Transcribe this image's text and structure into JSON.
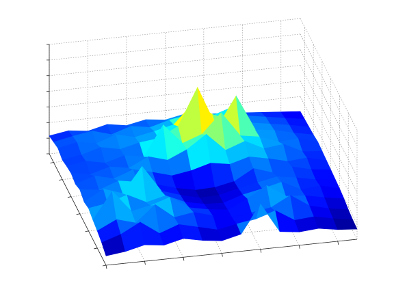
{
  "chart_data": {
    "type": "surface",
    "colormap": "jet",
    "grid": true,
    "x": [
      0,
      1,
      2,
      3,
      4,
      5,
      6,
      7,
      8,
      9,
      10,
      11,
      12,
      13
    ],
    "y": [
      0,
      1,
      2,
      3,
      4,
      5,
      6,
      7,
      8,
      9,
      10,
      11,
      12,
      13
    ],
    "z": [
      [
        1.2,
        1.5,
        2.1,
        1.8,
        2.4,
        1.9,
        1.6,
        2.2,
        5.8,
        2.0,
        1.7,
        1.9,
        1.5,
        1.3
      ],
      [
        1.8,
        2.6,
        3.9,
        2.2,
        3.1,
        2.5,
        1.9,
        2.4,
        2.8,
        3.6,
        2.1,
        2.3,
        1.8,
        1.4
      ],
      [
        2.2,
        3.4,
        2.7,
        4.8,
        2.9,
        3.3,
        2.6,
        2.1,
        2.5,
        2.9,
        4.2,
        2.6,
        2.0,
        1.6
      ],
      [
        2.5,
        5.9,
        3.1,
        3.6,
        4.4,
        2.8,
        2.3,
        2.0,
        3.2,
        4.6,
        3.0,
        2.8,
        2.3,
        1.9
      ],
      [
        2.9,
        3.3,
        4.1,
        2.9,
        3.5,
        2.4,
        1.9,
        1.8,
        2.6,
        3.1,
        3.7,
        2.5,
        2.7,
        2.1
      ],
      [
        2.6,
        4.0,
        3.2,
        6.4,
        3.0,
        2.2,
        1.6,
        1.7,
        2.3,
        2.8,
        3.3,
        2.9,
        2.4,
        2.2
      ],
      [
        3.1,
        2.8,
        3.7,
        3.3,
        2.7,
        2.0,
        1.5,
        1.6,
        2.1,
        3.5,
        2.7,
        3.2,
        2.6,
        2.3
      ],
      [
        2.7,
        3.5,
        2.9,
        3.8,
        3.2,
        2.5,
        2.9,
        3.6,
        3.2,
        3.9,
        3.4,
        2.8,
        3.0,
        2.4
      ],
      [
        3.0,
        2.6,
        3.3,
        2.9,
        4.1,
        3.4,
        4.5,
        6.2,
        3.9,
        4.8,
        3.6,
        3.9,
        2.7,
        2.5
      ],
      [
        2.8,
        3.2,
        2.7,
        3.4,
        3.0,
        6.8,
        4.2,
        5.1,
        7.6,
        4.4,
        4.0,
        3.1,
        3.3,
        2.6
      ],
      [
        2.5,
        2.9,
        3.6,
        3.1,
        3.7,
        4.0,
        5.3,
        10.0,
        4.6,
        8.4,
        3.8,
        3.5,
        2.9,
        2.4
      ],
      [
        2.9,
        3.4,
        3.0,
        3.9,
        3.3,
        3.8,
        4.4,
        6.9,
        5.2,
        4.1,
        3.6,
        3.2,
        2.8,
        2.3
      ],
      [
        2.6,
        3.1,
        3.5,
        2.8,
        3.6,
        3.2,
        3.9,
        4.3,
        3.7,
        4.5,
        3.4,
        3.0,
        2.6,
        2.2
      ],
      [
        2.3,
        2.7,
        2.4,
        3.0,
        2.6,
        3.1,
        2.8,
        3.3,
        3.0,
        2.9,
        2.7,
        2.5,
        2.3,
        2.1
      ]
    ],
    "xlim": [
      0,
      13
    ],
    "xticks": [
      0,
      2,
      4,
      6,
      8,
      10,
      12
    ],
    "ylim": [
      0,
      13
    ],
    "yticks": [
      0,
      2,
      4,
      6,
      8,
      10,
      12
    ],
    "zlim": [
      0,
      14
    ],
    "zticks": [
      0,
      2,
      4,
      6,
      8,
      10,
      12,
      14
    ]
  }
}
